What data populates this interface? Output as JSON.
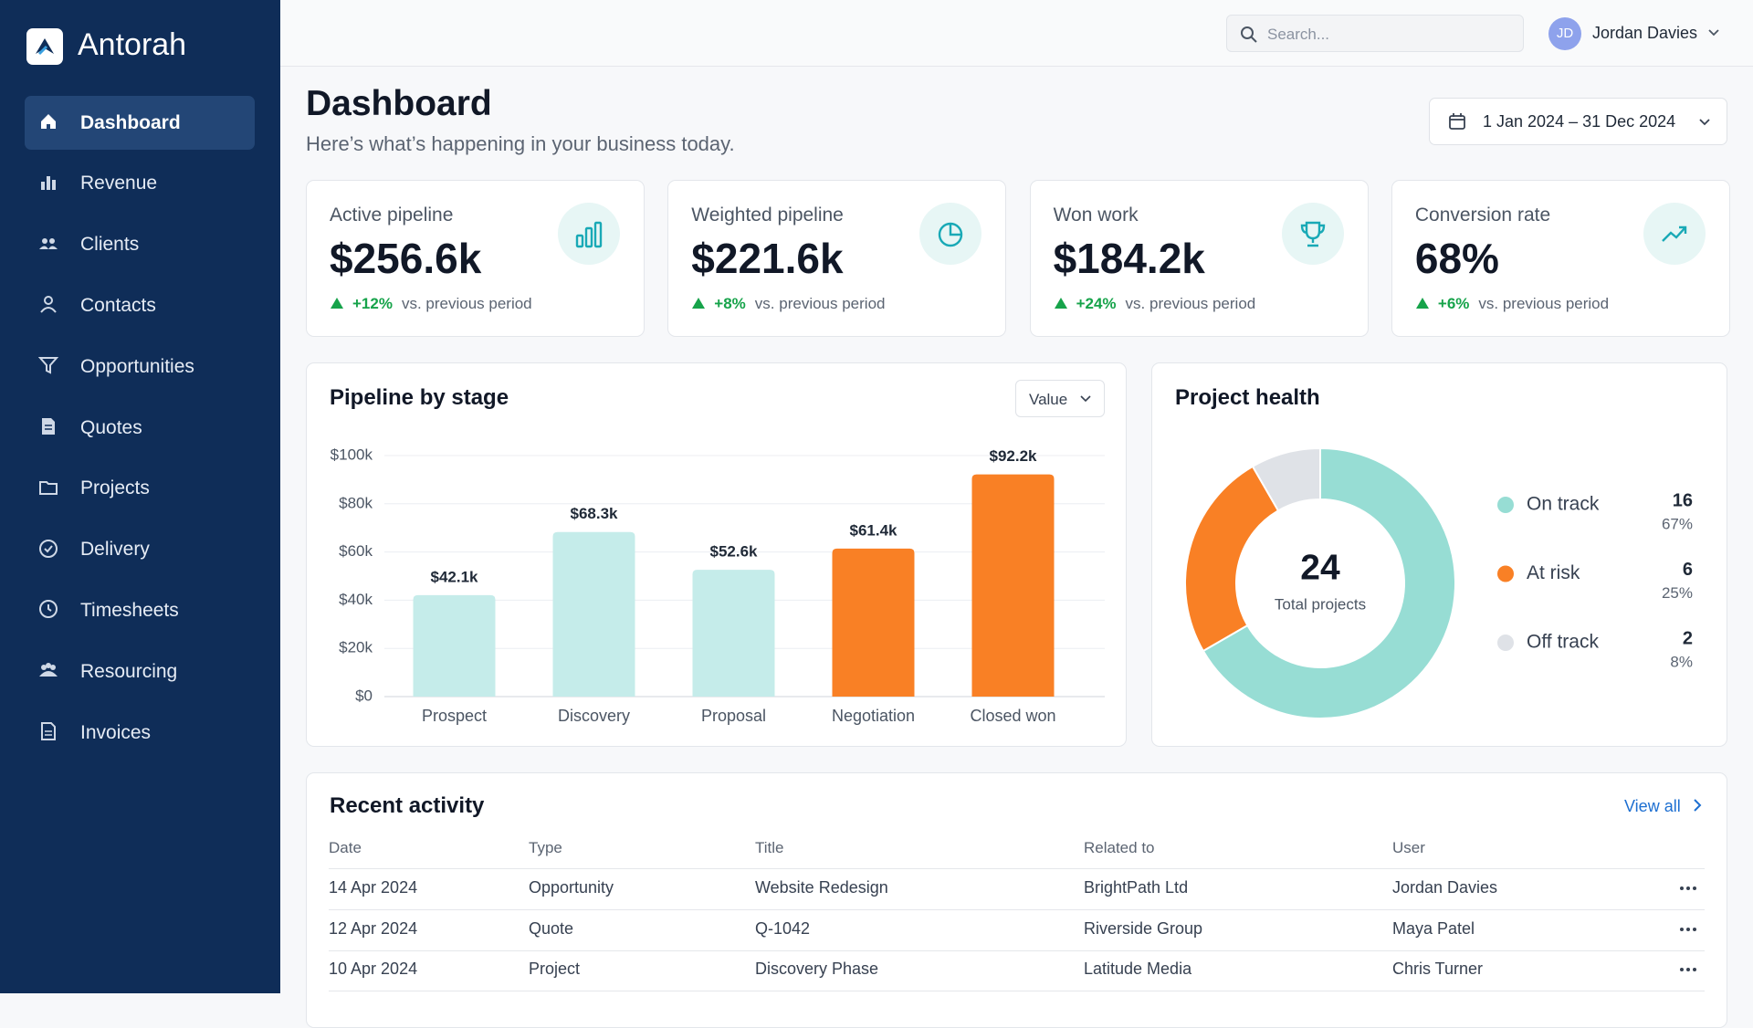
{
  "sidebar": {
    "brand": "Antorah",
    "nav": [
      "Dashboard",
      "Revenue",
      "Clients",
      "Contacts",
      "Opportunities",
      "Quotes",
      "Projects",
      "Delivery",
      "Timesheets",
      "Resourcing",
      "Invoices"
    ]
  },
  "topbar": {
    "search_placeholder": "Search...",
    "user_initials": "JD",
    "user_name": "Jordan Davies"
  },
  "header": {
    "title": "Dashboard",
    "subtitle": "Here’s what’s happening in your business today.",
    "date_range": "1 Jan 2024 – 31 Dec 2024"
  },
  "kpis": [
    {
      "label": "Active pipeline",
      "value": "$256.6k",
      "change": "+12%",
      "note": "vs. previous period"
    },
    {
      "label": "Weighted pipeline",
      "value": "$221.6k",
      "change": "+8%",
      "note": "vs. previous period"
    },
    {
      "label": "Won work",
      "value": "$184.2k",
      "change": "+24%",
      "note": "vs. previous period"
    },
    {
      "label": "Conversion rate",
      "value": "68%",
      "change": "+6%",
      "note": "vs. previous period"
    }
  ],
  "chart_data": [
    {
      "type": "bar",
      "title": "Pipeline by stage",
      "dropdown": "Value",
      "categories": [
        "Prospect",
        "Discovery",
        "Proposal",
        "Negotiation",
        "Closed won"
      ],
      "values": [
        42100,
        68300,
        52600,
        61400,
        92200
      ],
      "value_labels": [
        "$42.1k",
        "$68.3k",
        "$52.6k",
        "$61.4k",
        "$92.2k"
      ],
      "colors": [
        "#c5ecea",
        "#c5ecea",
        "#c5ecea",
        "#f98025",
        "#f98025"
      ],
      "ylim": [
        0,
        100000
      ],
      "yticks": [
        {
          "value": 0,
          "label": "$0"
        },
        {
          "value": 20000,
          "label": "$20k"
        },
        {
          "value": 40000,
          "label": "$40k"
        },
        {
          "value": 60000,
          "label": "$60k"
        },
        {
          "value": 80000,
          "label": "$80k"
        },
        {
          "value": 100000,
          "label": "$100k"
        }
      ],
      "grid": true
    },
    {
      "type": "pie",
      "title": "Project health",
      "total": 24,
      "total_label": "Total projects",
      "categories": [
        "On track",
        "At risk",
        "Off track"
      ],
      "values": [
        16,
        6,
        2
      ],
      "percent_labels": [
        "67%",
        "25%",
        "8%"
      ],
      "colors": [
        "#97ddd4",
        "#f98025",
        "#dfe2e7"
      ]
    }
  ],
  "activity": {
    "title": "Recent activity",
    "view_all": "View all",
    "columns": [
      "Date",
      "Type",
      "Title",
      "Related to",
      "User"
    ],
    "rows": [
      [
        "14 Apr 2024",
        "Opportunity",
        "Website Redesign",
        "BrightPath Ltd",
        "Jordan Davies"
      ],
      [
        "12 Apr 2024",
        "Quote",
        "Q-1042",
        "Riverside Group",
        "Maya Patel"
      ],
      [
        "10 Apr 2024",
        "Project",
        "Discovery Phase",
        "Latitude Media",
        "Chris Turner"
      ]
    ]
  }
}
